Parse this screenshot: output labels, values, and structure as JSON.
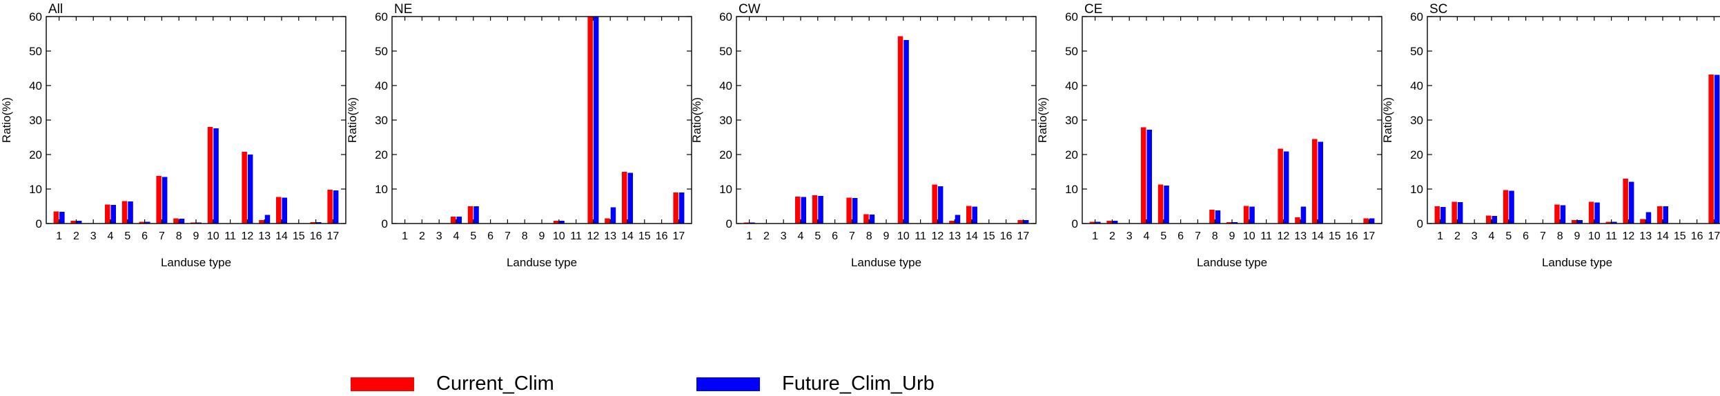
{
  "chart_data": [
    {
      "type": "bar",
      "title": "All",
      "xlabel": "Landuse type",
      "ylabel": "Ratio(%)",
      "ylim": [
        0,
        60
      ],
      "yticks": [
        0,
        10,
        20,
        30,
        40,
        50,
        60
      ],
      "categories": [
        "1",
        "2",
        "3",
        "4",
        "5",
        "6",
        "7",
        "8",
        "9",
        "10",
        "11",
        "12",
        "13",
        "14",
        "15",
        "16",
        "17"
      ],
      "series": [
        {
          "name": "Current_Clim",
          "values": [
            3.5,
            0.8,
            0,
            5.5,
            6.5,
            0.5,
            13.8,
            1.5,
            0.3,
            28.0,
            0,
            20.8,
            1.0,
            7.7,
            0,
            0.4,
            9.8
          ]
        },
        {
          "name": "Future_Clim_Urb",
          "values": [
            3.4,
            0.8,
            0,
            5.4,
            6.4,
            0.5,
            13.5,
            1.4,
            0.3,
            27.6,
            0,
            20.0,
            2.5,
            7.5,
            0,
            0.4,
            9.6
          ]
        }
      ]
    },
    {
      "type": "bar",
      "title": "NE",
      "xlabel": "Landuse type",
      "ylabel": "Ratio(%)",
      "ylim": [
        0,
        60
      ],
      "yticks": [
        0,
        10,
        20,
        30,
        40,
        50,
        60
      ],
      "categories": [
        "1",
        "2",
        "3",
        "4",
        "5",
        "6",
        "7",
        "8",
        "9",
        "10",
        "11",
        "12",
        "13",
        "14",
        "15",
        "16",
        "17"
      ],
      "series": [
        {
          "name": "Current_Clim",
          "values": [
            0,
            0,
            0,
            2.0,
            5.0,
            0,
            0,
            0,
            0,
            0.8,
            0,
            60,
            1.5,
            15.0,
            0,
            0,
            9.0
          ]
        },
        {
          "name": "Future_Clim_Urb",
          "values": [
            0,
            0,
            0,
            2.0,
            5.0,
            0,
            0,
            0,
            0,
            0.8,
            0,
            60,
            4.7,
            14.7,
            0,
            0,
            9.0
          ]
        }
      ]
    },
    {
      "type": "bar",
      "title": "CW",
      "xlabel": "Landuse type",
      "ylabel": "Ratio(%)",
      "ylim": [
        0,
        60
      ],
      "yticks": [
        0,
        10,
        20,
        30,
        40,
        50,
        60
      ],
      "categories": [
        "1",
        "2",
        "3",
        "4",
        "5",
        "6",
        "7",
        "8",
        "9",
        "10",
        "11",
        "12",
        "13",
        "14",
        "15",
        "16",
        "17"
      ],
      "series": [
        {
          "name": "Current_Clim",
          "values": [
            0.3,
            0,
            0,
            7.8,
            8.2,
            0,
            7.5,
            2.7,
            0,
            54.3,
            0,
            11.3,
            0.8,
            5.1,
            0,
            0,
            1.0
          ]
        },
        {
          "name": "Future_Clim_Urb",
          "values": [
            0.3,
            0,
            0,
            7.7,
            8.0,
            0,
            7.4,
            2.6,
            0,
            53.2,
            0,
            10.8,
            2.5,
            4.9,
            0,
            0,
            1.0
          ]
        }
      ]
    },
    {
      "type": "bar",
      "title": "CE",
      "xlabel": "Landuse type",
      "ylabel": "Ratio(%)",
      "ylim": [
        0,
        60
      ],
      "yticks": [
        0,
        10,
        20,
        30,
        40,
        50,
        60
      ],
      "categories": [
        "1",
        "2",
        "3",
        "4",
        "5",
        "6",
        "7",
        "8",
        "9",
        "10",
        "11",
        "12",
        "13",
        "14",
        "15",
        "16",
        "17"
      ],
      "series": [
        {
          "name": "Current_Clim",
          "values": [
            0.5,
            0.8,
            0,
            27.9,
            11.3,
            0,
            0,
            4.0,
            0.4,
            5.1,
            0,
            21.7,
            1.8,
            24.5,
            0,
            0,
            1.5
          ]
        },
        {
          "name": "Future_Clim_Urb",
          "values": [
            0.5,
            0.8,
            0,
            27.2,
            11.0,
            0,
            0,
            3.8,
            0.4,
            4.9,
            0,
            20.9,
            4.9,
            23.7,
            0,
            0,
            1.5
          ]
        }
      ]
    },
    {
      "type": "bar",
      "title": "SC",
      "xlabel": "Landuse type",
      "ylabel": "Ratio(%)",
      "ylim": [
        0,
        60
      ],
      "yticks": [
        0,
        10,
        20,
        30,
        40,
        50,
        60
      ],
      "categories": [
        "1",
        "2",
        "3",
        "4",
        "5",
        "6",
        "7",
        "8",
        "9",
        "10",
        "11",
        "12",
        "13",
        "14",
        "15",
        "16",
        "17"
      ],
      "series": [
        {
          "name": "Current_Clim",
          "values": [
            5.0,
            6.3,
            0,
            2.3,
            9.7,
            0,
            0,
            5.5,
            1.0,
            6.3,
            0.5,
            13.0,
            1.3,
            5.0,
            0,
            0,
            43.2
          ]
        },
        {
          "name": "Future_Clim_Urb",
          "values": [
            4.8,
            6.2,
            0,
            2.2,
            9.5,
            0,
            0,
            5.3,
            1.0,
            6.1,
            0.5,
            12.1,
            3.3,
            5.0,
            0,
            0,
            43.1
          ]
        }
      ]
    }
  ],
  "legend": [
    {
      "label": "Current_Clim",
      "color": "#ff0000"
    },
    {
      "label": "Future_Clim_Urb",
      "color": "#0000ff"
    }
  ]
}
